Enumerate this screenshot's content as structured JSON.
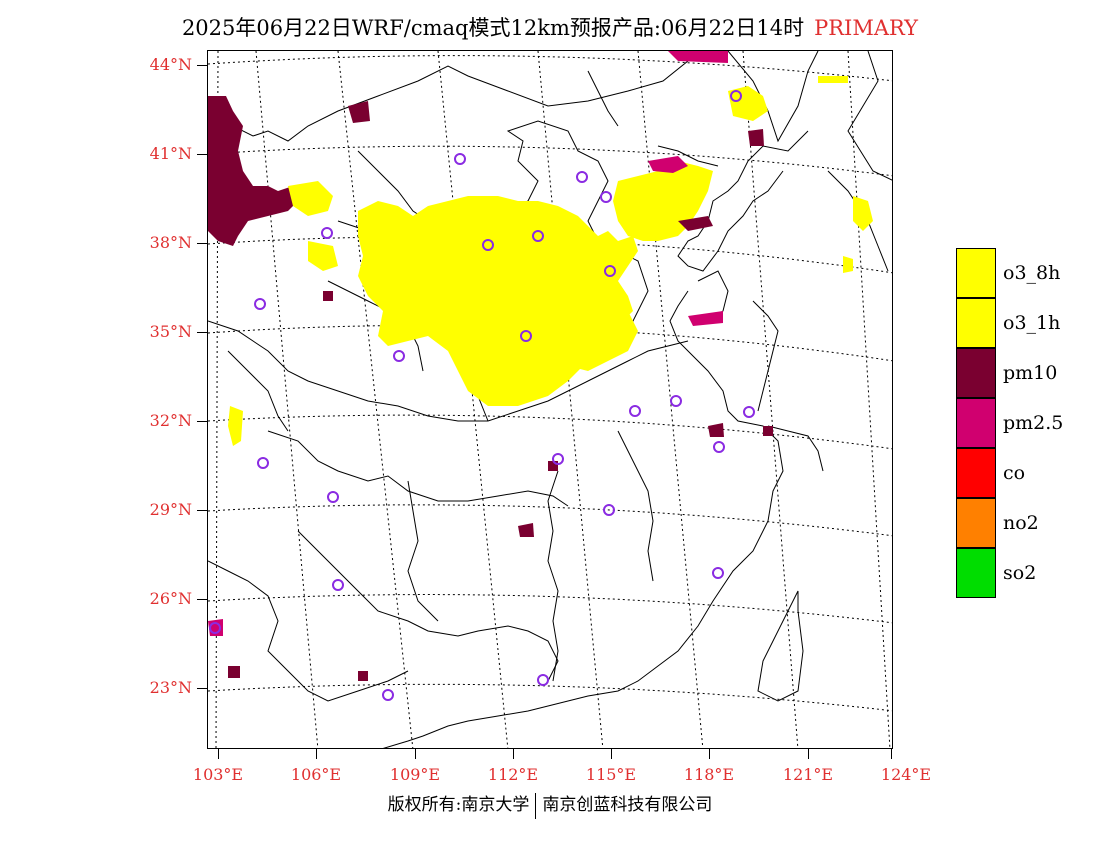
{
  "title": {
    "main": "2025年06月22日WRF/cmaq模式12km预报产品:06月22日14时",
    "label": "PRIMARY"
  },
  "axes": {
    "lat_labels": [
      "44°N",
      "41°N",
      "38°N",
      "35°N",
      "32°N",
      "29°N",
      "26°N",
      "23°N"
    ],
    "lon_labels": [
      "103°E",
      "106°E",
      "109°E",
      "112°E",
      "115°E",
      "118°E",
      "121°E",
      "124°E"
    ]
  },
  "legend": [
    {
      "label": "o3_8h",
      "color": "#ffff00"
    },
    {
      "label": "o3_1h",
      "color": "#ffff00"
    },
    {
      "label": "pm10",
      "color": "#7a0030"
    },
    {
      "label": "pm2.5",
      "color": "#d0006f"
    },
    {
      "label": "co",
      "color": "#ff0000"
    },
    {
      "label": "no2",
      "color": "#ff8000"
    },
    {
      "label": "so2",
      "color": "#00dd00"
    }
  ],
  "colors": {
    "axis_label": "#e03030",
    "station_marker": "#8a2be2"
  },
  "copyright": {
    "left": "版权所有:南京大学",
    "right": "南京创蓝科技有限公司"
  }
}
